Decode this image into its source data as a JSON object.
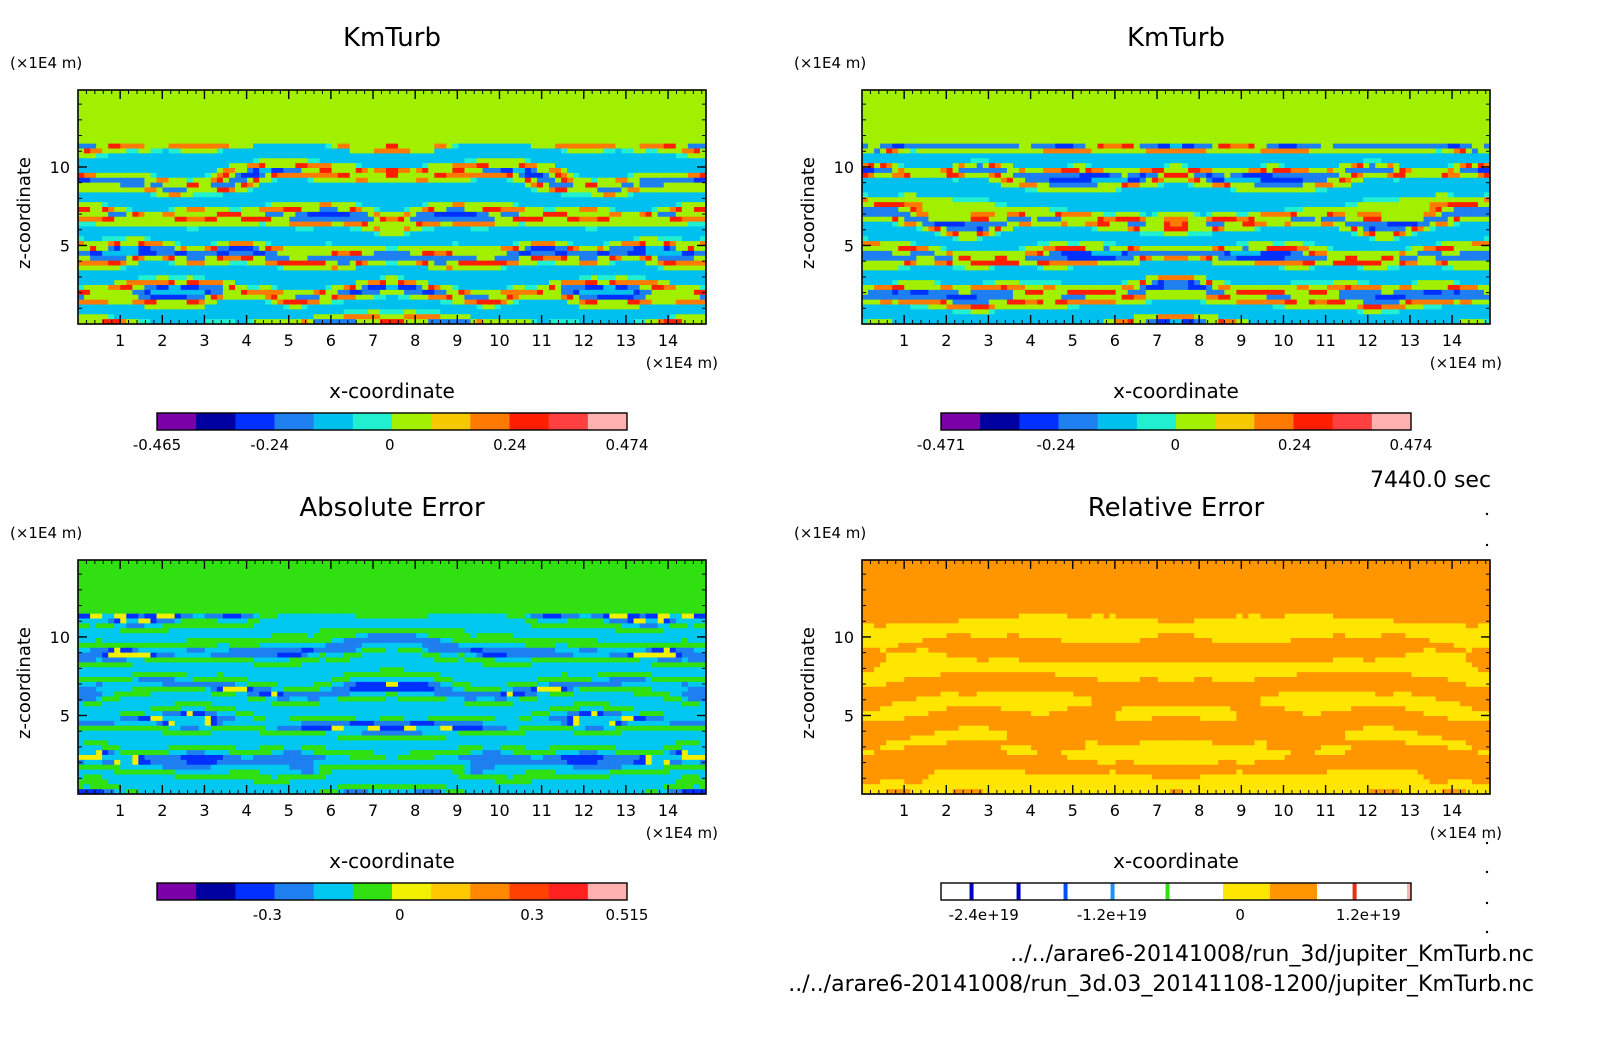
{
  "time_label": "7440.0 sec",
  "files": [
    "../../arare6-20141008/run_3d/jupiter_KmTurb.nc",
    "../../arare6-20141008/run_3d.03_20141108-1200/jupiter_KmTurb.nc"
  ],
  "colors": {
    "kmturb_levels": [
      "#7b00a8",
      "#0000a0",
      "#0030ff",
      "#1e7ff0",
      "#00c0f0",
      "#20f0d0",
      "#a0f000",
      "#f5c800",
      "#ff7a00",
      "#ff1e00",
      "#ff4040",
      "#ffb0b0"
    ],
    "abs_levels": [
      "#7b00a8",
      "#0000a0",
      "#0030ff",
      "#1e7ff0",
      "#00c8f0",
      "#30e010",
      "#f0f000",
      "#ffc800",
      "#ff8800",
      "#ff4000",
      "#ff2020",
      "#ffb0b0"
    ],
    "rel_levels": [
      "#ffffff",
      "#ffffff",
      "#ffffff",
      "#ffffff",
      "#ffffff",
      "#ffffff",
      "#ffe600",
      "#ff9600",
      "#ffffff",
      "#ffffff"
    ]
  },
  "chart_data": [
    {
      "type": "heatmap",
      "title": "KmTurb",
      "xlabel": "x-coordinate",
      "ylabel": "z-coordinate",
      "x_unit": "(×1E4 m)",
      "y_unit": "(×1E4 m)",
      "xlim": [
        0,
        14.9
      ],
      "ylim": [
        0,
        14.9
      ],
      "x_ticks": [
        "1",
        "2",
        "3",
        "4",
        "5",
        "6",
        "7",
        "8",
        "9",
        "10",
        "11",
        "12",
        "13",
        "14"
      ],
      "y_ticks": [
        "5",
        "10"
      ],
      "colorbar": {
        "min": -0.465,
        "max": 0.474,
        "tick_labels": [
          "-0.465",
          "-0.24",
          "0",
          "0.24",
          "0.474"
        ]
      },
      "background_value": 0.05
    },
    {
      "type": "heatmap",
      "title": "KmTurb",
      "xlabel": "x-coordinate",
      "ylabel": "z-coordinate",
      "x_unit": "(×1E4 m)",
      "y_unit": "(×1E4 m)",
      "xlim": [
        0,
        14.9
      ],
      "ylim": [
        0,
        14.9
      ],
      "x_ticks": [
        "1",
        "2",
        "3",
        "4",
        "5",
        "6",
        "7",
        "8",
        "9",
        "10",
        "11",
        "12",
        "13",
        "14"
      ],
      "y_ticks": [
        "5",
        "10"
      ],
      "colorbar": {
        "min": -0.471,
        "max": 0.474,
        "tick_labels": [
          "-0.471",
          "-0.24",
          "0",
          "0.24",
          "0.474"
        ]
      },
      "background_value": 0.05
    },
    {
      "type": "heatmap",
      "title": "Absolute Error",
      "xlabel": "x-coordinate",
      "ylabel": "z-coordinate",
      "x_unit": "(×1E4 m)",
      "y_unit": "(×1E4 m)",
      "xlim": [
        0,
        14.9
      ],
      "ylim": [
        0,
        14.9
      ],
      "x_ticks": [
        "1",
        "2",
        "3",
        "4",
        "5",
        "6",
        "7",
        "8",
        "9",
        "10",
        "11",
        "12",
        "13",
        "14"
      ],
      "y_ticks": [
        "5",
        "10"
      ],
      "colorbar": {
        "min": -0.55,
        "max": 0.515,
        "tick_labels": [
          "-0.3",
          "0",
          "0.3",
          "0.515"
        ]
      },
      "background_value": 0.0
    },
    {
      "type": "heatmap",
      "title": "Relative Error",
      "xlabel": "x-coordinate",
      "ylabel": "z-coordinate",
      "x_unit": "(×1E4 m)",
      "y_unit": "(×1E4 m)",
      "xlim": [
        0,
        14.9
      ],
      "ylim": [
        0,
        14.9
      ],
      "x_ticks": [
        "1",
        "2",
        "3",
        "4",
        "5",
        "6",
        "7",
        "8",
        "9",
        "10",
        "11",
        "12",
        "13",
        "14"
      ],
      "y_ticks": [
        "5",
        "10"
      ],
      "colorbar": {
        "min": -2.8e+19,
        "max": 1.6e+19,
        "tick_labels": [
          "-2.4e+19",
          "-1.2e+19",
          "0",
          "1.2e+19"
        ]
      },
      "background_value": 0.0
    }
  ]
}
